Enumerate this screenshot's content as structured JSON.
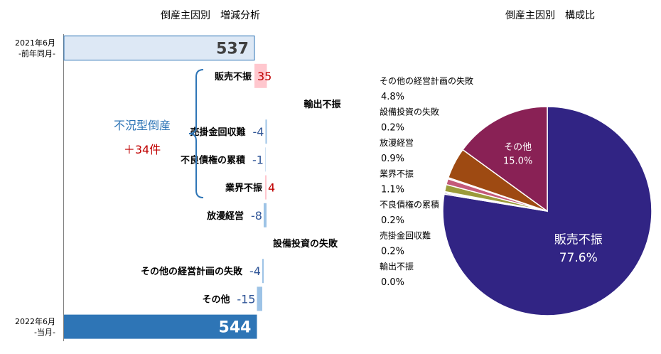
{
  "waterfall": {
    "title": "倒産主因別　増減分析",
    "start_label_line1": "2021年6月",
    "start_label_line2": "-前年同月-",
    "end_label_line1": "2022年6月",
    "end_label_line2": "-当月-",
    "bracket_label": "不況型倒産",
    "bracket_value": "＋34件"
  },
  "pie": {
    "title": "倒産主因別　構成比"
  },
  "colors": {
    "start_bar": "#dde8f5",
    "end_bar": "#2e75b6",
    "increase": "#ffc7ce",
    "decrease": "#9dc3e6",
    "increase_text": "#c00000",
    "decrease_text": "#2f5597",
    "bracket": "#2e75b6"
  },
  "chart_data": [
    {
      "type": "waterfall",
      "title": "倒産主因別　増減分析",
      "start": {
        "label": "2021年6月 -前年同月-",
        "value": 537,
        "text": "537"
      },
      "end": {
        "label": "2022年6月 -当月-",
        "value": 544,
        "text": "544"
      },
      "categories": [
        "販売不振",
        "輸出不振",
        "売掛金回収難",
        "不良債権の累積",
        "業界不振",
        "放漫経営",
        "設備投資の失敗",
        "その他の経営計画の失敗",
        "その他"
      ],
      "values": [
        35,
        0,
        -4,
        -1,
        4,
        -8,
        0,
        -4,
        -15
      ],
      "value_labels": [
        "35",
        "",
        "-4",
        "-1",
        "4",
        "-8",
        "",
        "-4",
        "-15"
      ]
    },
    {
      "type": "pie",
      "title": "倒産主因別　構成比",
      "categories": [
        "販売不振",
        "輸出不振",
        "売掛金回収難",
        "不良債権の累積",
        "業界不振",
        "放漫経営",
        "設備投資の失敗",
        "その他の経営計画の失敗",
        "その他"
      ],
      "values": [
        77.6,
        0.0,
        0.2,
        0.2,
        1.1,
        0.9,
        0.2,
        4.8,
        15.0
      ],
      "value_labels": [
        "77.6%",
        "0.0%",
        "0.2%",
        "0.2%",
        "1.1%",
        "0.9%",
        "0.2%",
        "4.8%",
        "15.0%"
      ],
      "colors": [
        "#312484",
        "#9e4c9e",
        "#6a3d9a",
        "#b3b3b3",
        "#9b9b3a",
        "#c45a7a",
        "#e6c3e6",
        "#9e4a12",
        "#892155"
      ]
    }
  ]
}
